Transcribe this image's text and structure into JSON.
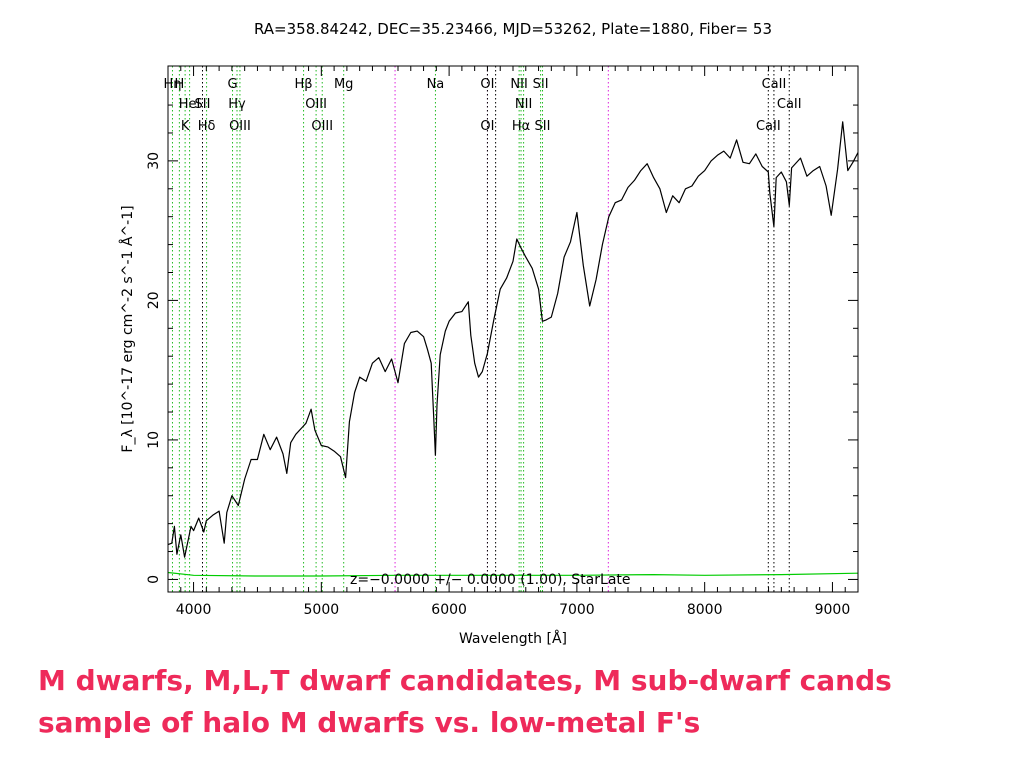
{
  "header": {
    "text": "RA=358.84242, DEC=35.23466, MJD=53262, Plate=1880, Fiber= 53"
  },
  "fit_label": "z=−0.0000 +/− 0.0000 (1.00), StarLate",
  "captions": {
    "line1": "M dwarfs, M,L,T dwarf candidates,  M sub-dwarf cands",
    "line2": "sample of halo M dwarfs vs. low-metal F's"
  },
  "colors": {
    "spectrum": "#000000",
    "error": "#00cc00",
    "line_green": "#22bb22",
    "line_magenta": "#dd22dd",
    "line_black": "#000000",
    "caption": "#ee2a5a"
  },
  "chart_data": {
    "type": "line",
    "xlabel": "Wavelength [Å]",
    "ylabel": "F_λ [10^-17 erg cm^-2 s^-1 Å^-1]",
    "xlim": [
      3800,
      9200
    ],
    "ylim": [
      -0.9,
      36.8
    ],
    "xticks": [
      4000,
      5000,
      6000,
      7000,
      8000,
      9000
    ],
    "yticks": [
      0,
      10,
      20,
      30
    ],
    "series": [
      {
        "key": "flux",
        "points": [
          [
            3800,
            2.5
          ],
          [
            3830,
            2.6
          ],
          [
            3850,
            3.8
          ],
          [
            3870,
            1.8
          ],
          [
            3900,
            3.2
          ],
          [
            3930,
            1.6
          ],
          [
            3960,
            2.9
          ],
          [
            3980,
            3.8
          ],
          [
            4000,
            3.5
          ],
          [
            4040,
            4.4
          ],
          [
            4080,
            3.4
          ],
          [
            4100,
            4.2
          ],
          [
            4150,
            4.6
          ],
          [
            4200,
            4.9
          ],
          [
            4240,
            2.6
          ],
          [
            4260,
            4.8
          ],
          [
            4300,
            6.0
          ],
          [
            4350,
            5.3
          ],
          [
            4400,
            7.2
          ],
          [
            4450,
            8.6
          ],
          [
            4500,
            8.6
          ],
          [
            4550,
            10.4
          ],
          [
            4600,
            9.3
          ],
          [
            4650,
            10.2
          ],
          [
            4700,
            9.0
          ],
          [
            4730,
            7.6
          ],
          [
            4760,
            9.8
          ],
          [
            4800,
            10.4
          ],
          [
            4850,
            10.9
          ],
          [
            4880,
            11.2
          ],
          [
            4920,
            12.2
          ],
          [
            4950,
            10.7
          ],
          [
            5000,
            9.6
          ],
          [
            5050,
            9.5
          ],
          [
            5100,
            9.2
          ],
          [
            5150,
            8.8
          ],
          [
            5190,
            7.3
          ],
          [
            5220,
            11.3
          ],
          [
            5260,
            13.4
          ],
          [
            5300,
            14.5
          ],
          [
            5350,
            14.2
          ],
          [
            5400,
            15.5
          ],
          [
            5450,
            15.9
          ],
          [
            5500,
            14.9
          ],
          [
            5550,
            15.8
          ],
          [
            5600,
            14.1
          ],
          [
            5650,
            16.9
          ],
          [
            5700,
            17.7
          ],
          [
            5750,
            17.8
          ],
          [
            5800,
            17.4
          ],
          [
            5830,
            16.5
          ],
          [
            5860,
            15.5
          ],
          [
            5880,
            11.5
          ],
          [
            5893,
            8.9
          ],
          [
            5905,
            12.5
          ],
          [
            5930,
            16.1
          ],
          [
            5970,
            17.8
          ],
          [
            6000,
            18.5
          ],
          [
            6050,
            19.1
          ],
          [
            6100,
            19.2
          ],
          [
            6150,
            19.9
          ],
          [
            6170,
            17.5
          ],
          [
            6200,
            15.5
          ],
          [
            6230,
            14.5
          ],
          [
            6260,
            14.9
          ],
          [
            6300,
            16.2
          ],
          [
            6350,
            18.6
          ],
          [
            6400,
            20.8
          ],
          [
            6450,
            21.6
          ],
          [
            6500,
            22.8
          ],
          [
            6530,
            24.4
          ],
          [
            6560,
            23.8
          ],
          [
            6600,
            23.1
          ],
          [
            6650,
            22.3
          ],
          [
            6700,
            20.8
          ],
          [
            6730,
            18.5
          ],
          [
            6760,
            18.6
          ],
          [
            6800,
            18.8
          ],
          [
            6850,
            20.5
          ],
          [
            6900,
            23.1
          ],
          [
            6950,
            24.2
          ],
          [
            7000,
            26.3
          ],
          [
            7050,
            22.5
          ],
          [
            7100,
            19.6
          ],
          [
            7150,
            21.5
          ],
          [
            7200,
            24.0
          ],
          [
            7250,
            26.0
          ],
          [
            7300,
            27.0
          ],
          [
            7350,
            27.2
          ],
          [
            7400,
            28.1
          ],
          [
            7450,
            28.6
          ],
          [
            7500,
            29.3
          ],
          [
            7550,
            29.8
          ],
          [
            7600,
            28.8
          ],
          [
            7650,
            28.0
          ],
          [
            7700,
            26.3
          ],
          [
            7750,
            27.5
          ],
          [
            7800,
            27.0
          ],
          [
            7850,
            28.0
          ],
          [
            7900,
            28.2
          ],
          [
            7950,
            28.9
          ],
          [
            8000,
            29.3
          ],
          [
            8050,
            30.0
          ],
          [
            8100,
            30.4
          ],
          [
            8150,
            30.7
          ],
          [
            8200,
            30.2
          ],
          [
            8250,
            31.5
          ],
          [
            8300,
            29.9
          ],
          [
            8350,
            29.8
          ],
          [
            8400,
            30.5
          ],
          [
            8450,
            29.6
          ],
          [
            8498,
            29.2
          ],
          [
            8510,
            27.7
          ],
          [
            8542,
            25.3
          ],
          [
            8560,
            28.8
          ],
          [
            8600,
            29.2
          ],
          [
            8640,
            28.5
          ],
          [
            8662,
            26.8
          ],
          [
            8680,
            29.5
          ],
          [
            8750,
            30.2
          ],
          [
            8800,
            28.9
          ],
          [
            8850,
            29.3
          ],
          [
            8900,
            29.6
          ],
          [
            8950,
            28.2
          ],
          [
            8990,
            26.1
          ],
          [
            9040,
            29.4
          ],
          [
            9080,
            32.8
          ],
          [
            9120,
            29.3
          ],
          [
            9160,
            29.9
          ],
          [
            9200,
            30.6
          ]
        ]
      },
      {
        "key": "error",
        "points": [
          [
            3800,
            0.5
          ],
          [
            4000,
            0.3
          ],
          [
            4500,
            0.25
          ],
          [
            5000,
            0.25
          ],
          [
            5600,
            0.3
          ],
          [
            6000,
            0.3
          ],
          [
            6500,
            0.3
          ],
          [
            7000,
            0.3
          ],
          [
            7600,
            0.35
          ],
          [
            8000,
            0.3
          ],
          [
            8600,
            0.35
          ],
          [
            9200,
            0.45
          ]
        ]
      }
    ],
    "emission_lines": [
      {
        "wl": 3835,
        "label": "Hη",
        "row": 1,
        "style": "green"
      },
      {
        "wl": 3889,
        "label": "H",
        "row": 1,
        "style": "green"
      },
      {
        "wl": 3934,
        "label": "K",
        "row": 3,
        "style": "green"
      },
      {
        "wl": 3969,
        "label": "HeI",
        "row": 2,
        "style": "green"
      },
      {
        "wl": 4070,
        "label": "SII",
        "row": 2,
        "style": "black"
      },
      {
        "wl": 4102,
        "label": "Hδ",
        "row": 3,
        "style": "green"
      },
      {
        "wl": 4305,
        "label": "G",
        "row": 1,
        "style": "green"
      },
      {
        "wl": 4340,
        "label": "Hγ",
        "row": 2,
        "style": "green"
      },
      {
        "wl": 4363,
        "label": "OIII",
        "row": 3,
        "style": "green"
      },
      {
        "wl": 4861,
        "label": "Hβ",
        "row": 1,
        "style": "green"
      },
      {
        "wl": 4959,
        "label": "OIII",
        "row": 2,
        "style": "green"
      },
      {
        "wl": 5007,
        "label": "OIII",
        "row": 3,
        "style": "green"
      },
      {
        "wl": 5175,
        "label": "Mg",
        "row": 1,
        "style": "green"
      },
      {
        "wl": 5577,
        "label": "",
        "row": 0,
        "style": "magenta"
      },
      {
        "wl": 5893,
        "label": "Na",
        "row": 1,
        "style": "green"
      },
      {
        "wl": 6300,
        "label": "OI",
        "row": 1,
        "style": "magenta"
      },
      {
        "wl": 6300,
        "label": "OI",
        "row": 3,
        "style": "black"
      },
      {
        "wl": 6364,
        "label": "",
        "row": 0,
        "style": "black"
      },
      {
        "wl": 6548,
        "label": "NII",
        "row": 1,
        "style": "green"
      },
      {
        "wl": 6563,
        "label": "Hα",
        "row": 3,
        "style": "green"
      },
      {
        "wl": 6583,
        "label": "NII",
        "row": 2,
        "style": "green"
      },
      {
        "wl": 6716,
        "label": "SII",
        "row": 1,
        "style": "green"
      },
      {
        "wl": 6731,
        "label": "SII",
        "row": 3,
        "style": "green"
      },
      {
        "wl": 7246,
        "label": "",
        "row": 0,
        "style": "magenta"
      },
      {
        "wl": 8498,
        "label": "CaII",
        "row": 3,
        "style": "black"
      },
      {
        "wl": 8542,
        "label": "CaII",
        "row": 1,
        "style": "black"
      },
      {
        "wl": 8662,
        "label": "CaII",
        "row": 2,
        "style": "black"
      }
    ]
  }
}
